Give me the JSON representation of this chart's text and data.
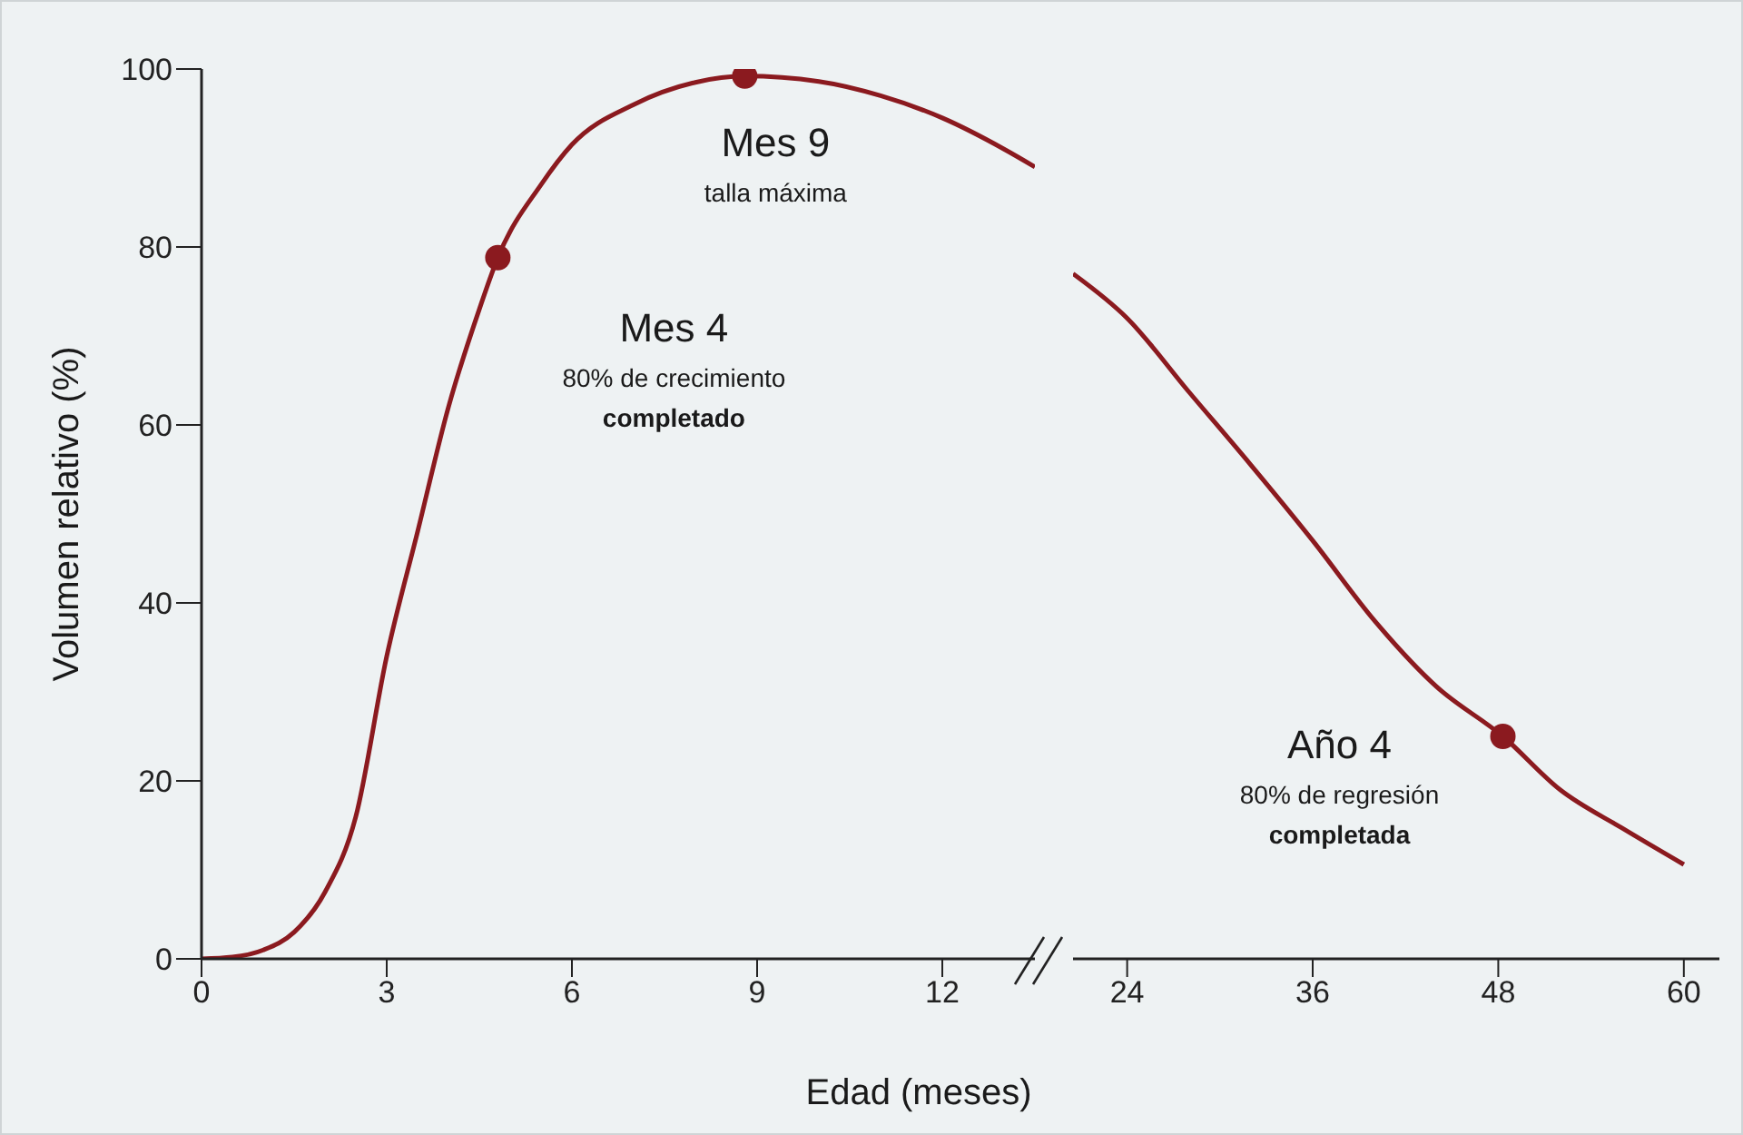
{
  "chart_data": [
    {
      "type": "line",
      "ylabel": "Volumen relativo (%)",
      "xlabel": "Edad (meses)",
      "xlim": [
        0,
        13.5
      ],
      "xticks": [
        0,
        3,
        6,
        9,
        12
      ],
      "ylim": [
        0,
        100
      ],
      "yticks": [
        0,
        20,
        40,
        60,
        80,
        100
      ],
      "grid": false,
      "legend": false,
      "series": [
        {
          "color": "#8b1a1f",
          "marker": "none",
          "x": [
            0,
            0.5,
            1,
            1.5,
            2,
            2.5,
            3,
            3.5,
            4,
            4.5,
            4.8,
            5.5,
            6,
            7,
            8,
            8.8,
            10,
            11,
            12,
            13,
            13.5
          ],
          "values": [
            0,
            0.2,
            1,
            3,
            7.5,
            16,
            34,
            48,
            62,
            73,
            78.8,
            87,
            91.5,
            96,
            98.5,
            99.2,
            98.6,
            97,
            94.5,
            91,
            89
          ]
        },
        {
          "type": "scatter",
          "color": "#8b1a1f",
          "marker": "circle",
          "x": [
            4.8,
            8.8
          ],
          "values": [
            78.8,
            99.2
          ]
        }
      ],
      "annotations": [
        {
          "text": "Mes 4\n80% de crecimiento\ncompletado",
          "x": 4.8,
          "y": 78.8
        },
        {
          "text": "Mes 9\ntalla máxima",
          "x": 8.8,
          "y": 99.2
        }
      ]
    },
    {
      "type": "line",
      "xlim": [
        20.5,
        62.3
      ],
      "xticks": [
        24,
        36,
        48,
        60
      ],
      "ylim": [
        0,
        100
      ],
      "yticks": [
        0,
        20,
        40,
        60,
        80,
        100
      ],
      "tick_labels": "x",
      "grid": false,
      "legend": false,
      "series": [
        {
          "color": "#8b1a1f",
          "marker": "none",
          "x": [
            20.5,
            24,
            28,
            32,
            36,
            40,
            44,
            48.3,
            52,
            56,
            60
          ],
          "values": [
            77,
            72,
            63.7,
            55.5,
            47,
            38,
            30.6,
            25,
            19,
            14.7,
            10.6
          ]
        },
        {
          "type": "scatter",
          "color": "#8b1a1f",
          "marker": "circle",
          "x": [
            48.3
          ],
          "values": [
            25
          ]
        }
      ],
      "annotations": [
        {
          "text": "Año 4\n80% de regresión\ncompletada",
          "x": 48.3,
          "y": 25
        }
      ]
    }
  ]
}
